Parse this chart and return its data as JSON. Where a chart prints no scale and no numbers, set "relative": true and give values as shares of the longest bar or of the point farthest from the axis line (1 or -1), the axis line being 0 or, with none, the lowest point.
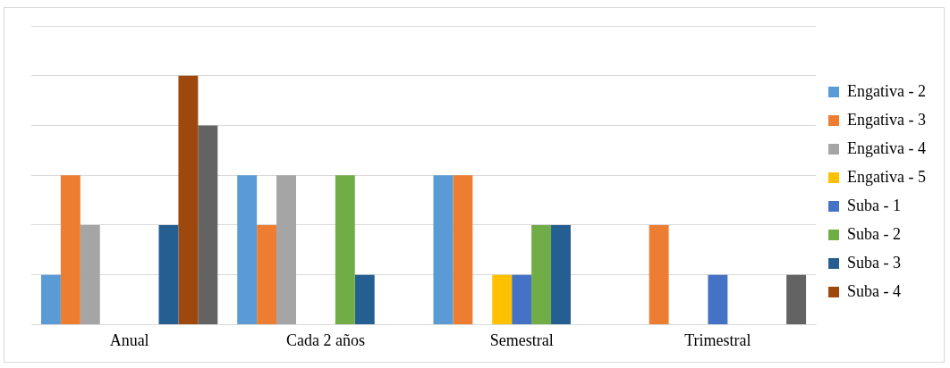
{
  "chart_data": {
    "type": "bar",
    "relative": true,
    "grid": "y",
    "legend": "right",
    "categories": [
      "Anual",
      "Cada 2 años",
      "Semestral",
      "Trimestral"
    ],
    "series": [
      {
        "name": "Engativa - 2",
        "color": "#5b9bd5",
        "values": [
          0.2,
          0.6,
          0.6,
          0
        ]
      },
      {
        "name": "Engativa - 3",
        "color": "#ed7d31",
        "values": [
          0.6,
          0.4,
          0.6,
          0.4
        ]
      },
      {
        "name": "Engativa - 4",
        "color": "#a5a5a5",
        "values": [
          0.4,
          0.6,
          0,
          0
        ]
      },
      {
        "name": "Engativa - 5",
        "color": "#ffc000",
        "values": [
          0,
          0,
          0.2,
          0
        ]
      },
      {
        "name": "Suba - 1",
        "color": "#4472c4",
        "values": [
          0,
          0,
          0.2,
          0.2
        ]
      },
      {
        "name": "Suba - 2",
        "color": "#70ad47",
        "values": [
          0,
          0.6,
          0.4,
          0
        ]
      },
      {
        "name": "Suba - 3",
        "color": "#255e91",
        "values": [
          0.4,
          0.2,
          0.4,
          0
        ]
      },
      {
        "name": "Suba - 4",
        "color": "#9e480e",
        "values": [
          1,
          0,
          0,
          0
        ]
      },
      {
        "color": "#636363",
        "values": [
          0.8,
          0,
          0,
          0.2
        ]
      }
    ]
  }
}
